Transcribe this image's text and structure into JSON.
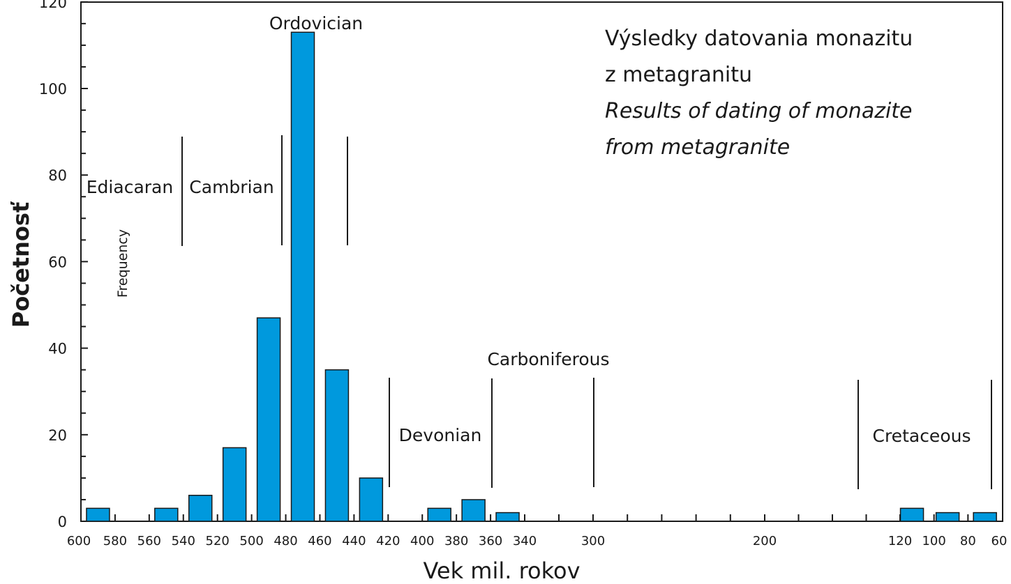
{
  "title": {
    "line1": "Výsledky datovania monazitu",
    "line2": "z metagranitu",
    "line3": "Results of dating of monazite",
    "line4": "from metagranite"
  },
  "axes": {
    "ylabel": "Početnosť",
    "ylabel_secondary": "Frequency",
    "xlabel": "Vek mil. rokov"
  },
  "chart_data": {
    "type": "bar",
    "title": "Výsledky datovania monazitu z metagranitu / Results of dating of monazite from metagranite",
    "xlabel": "Vek mil. rokov",
    "ylabel": "Početnosť",
    "x_reversed": true,
    "ylim": [
      0,
      120
    ],
    "y_ticks": [
      0,
      20,
      40,
      60,
      80,
      100,
      120
    ],
    "x_tick_labels": [
      "600",
      "580",
      "560",
      "540",
      "520",
      "500",
      "480",
      "460",
      "440",
      "420",
      "400",
      "380",
      "360",
      "340",
      "300",
      "200",
      "120",
      "100",
      "80",
      "60"
    ],
    "bars": [
      {
        "age": 590,
        "value": 3
      },
      {
        "age": 550,
        "value": 3
      },
      {
        "age": 530,
        "value": 6
      },
      {
        "age": 510,
        "value": 17
      },
      {
        "age": 490,
        "value": 47
      },
      {
        "age": 470,
        "value": 113
      },
      {
        "age": 450,
        "value": 35
      },
      {
        "age": 430,
        "value": 10
      },
      {
        "age": 390,
        "value": 3
      },
      {
        "age": 370,
        "value": 5
      },
      {
        "age": 350,
        "value": 2
      },
      {
        "age": 113,
        "value": 3
      },
      {
        "age": 92,
        "value": 2
      },
      {
        "age": 70,
        "value": 2
      }
    ],
    "period_labels": [
      "Ediacaran",
      "Cambrian",
      "Ordovician",
      "Devonian",
      "Carboniferous",
      "Cretaceous"
    ],
    "bar_color": "#0099dd",
    "grid": false
  }
}
